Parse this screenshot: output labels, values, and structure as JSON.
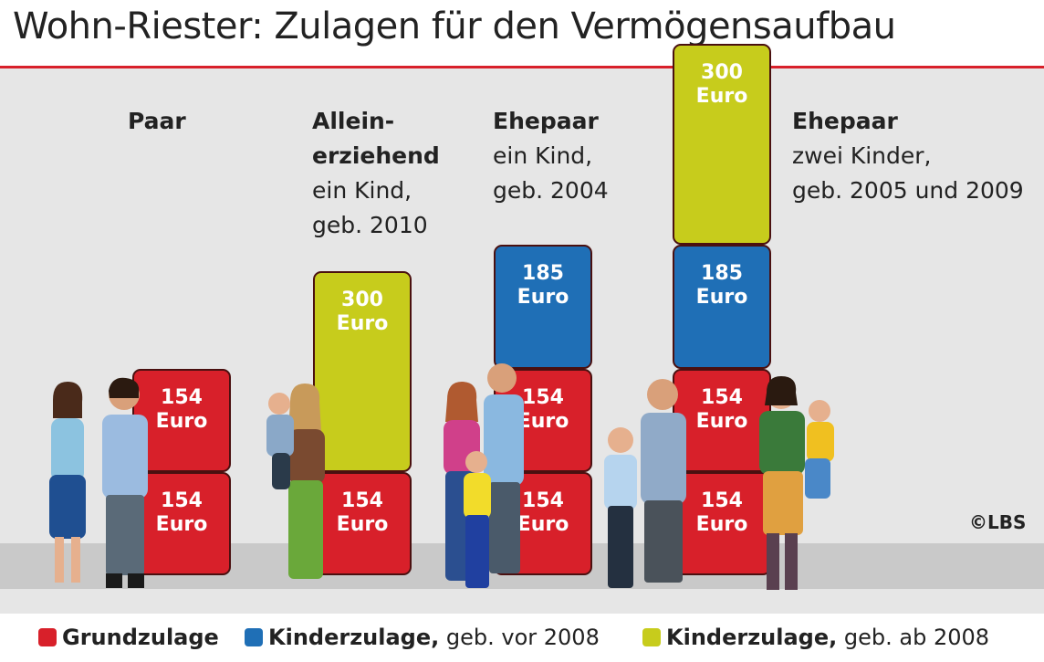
{
  "title": "Wohn-Riester: Zulagen für den Vermögensaufbau",
  "credit": "©LBS",
  "colors": {
    "grundzulage": "#d8202a",
    "kinderzulage_vor_2008": "#1f6fb6",
    "kinderzulage_ab_2008": "#c7cc1c",
    "accent": "#d8202a",
    "block_border": "#4a1010"
  },
  "legend": [
    {
      "strong": "Grundzulage",
      "rest": ""
    },
    {
      "strong": "Kinderzulage,",
      "rest": " geb. vor 2008"
    },
    {
      "strong": "Kinderzulage,",
      "rest": " geb. ab 2008"
    }
  ],
  "groups": [
    {
      "label_strong": [
        "Paar"
      ],
      "label_lines": []
    },
    {
      "label_strong": [
        "Allein-",
        "erziehend"
      ],
      "label_lines": [
        "ein Kind,",
        "geb. 2010"
      ]
    },
    {
      "label_strong": [
        "Ehepaar"
      ],
      "label_lines": [
        "ein Kind,",
        "geb. 2004"
      ]
    },
    {
      "label_strong": [
        "Ehepaar"
      ],
      "label_lines": [
        "zwei Kinder,",
        "geb. 2005 und 2009"
      ]
    }
  ],
  "chart_data": {
    "type": "bar",
    "stacked": true,
    "unit": "Euro",
    "categories": [
      "Paar",
      "Alleinerziehend",
      "Ehepaar ein Kind",
      "Ehepaar zwei Kinder"
    ],
    "stacks": [
      [
        {
          "series": "Grundzulage",
          "value": 154,
          "label": "154 Euro"
        },
        {
          "series": "Grundzulage",
          "value": 154,
          "label": "154 Euro"
        }
      ],
      [
        {
          "series": "Grundzulage",
          "value": 154,
          "label": "154 Euro"
        },
        {
          "series": "Kinderzulage, geb. ab 2008",
          "value": 300,
          "label": "300 Euro"
        }
      ],
      [
        {
          "series": "Grundzulage",
          "value": 154,
          "label": "154 Euro"
        },
        {
          "series": "Grundzulage",
          "value": 154,
          "label": "154 Euro"
        },
        {
          "series": "Kinderzulage, geb. vor 2008",
          "value": 185,
          "label": "185 Euro"
        }
      ],
      [
        {
          "series": "Grundzulage",
          "value": 154,
          "label": "154 Euro"
        },
        {
          "series": "Grundzulage",
          "value": 154,
          "label": "154 Euro"
        },
        {
          "series": "Kinderzulage, geb. vor 2008",
          "value": 185,
          "label": "185 Euro"
        },
        {
          "series": "Kinderzulage, geb. ab 2008",
          "value": 300,
          "label": "300 Euro"
        }
      ]
    ],
    "series": [
      {
        "name": "Grundzulage",
        "color": "#d8202a"
      },
      {
        "name": "Kinderzulage, geb. vor 2008",
        "color": "#1f6fb6"
      },
      {
        "name": "Kinderzulage, geb. ab 2008",
        "color": "#c7cc1c"
      }
    ]
  }
}
